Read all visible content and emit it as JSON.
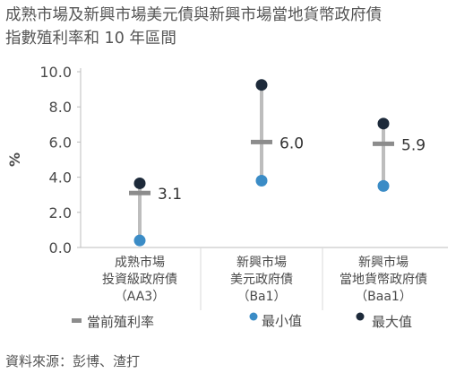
{
  "title": {
    "line1": "成熟市場及新興市場美元債與新興市場當地貨幣政府債",
    "line2": "指數殖利率和 10 年區間"
  },
  "source": "資料來源：彭博、渣打",
  "colors": {
    "range_line": "#bdbdbd",
    "current_marker": "#8c8c8c",
    "min_dot": "#3b8cc6",
    "max_dot": "#1d2a3a",
    "axis": "#bdbdbd",
    "text": "#4a4a4a"
  },
  "chart_data": {
    "type": "range_dot",
    "ylabel": "%",
    "ylim": [
      0,
      10
    ],
    "yticks": [
      "0.0",
      "2.0",
      "4.0",
      "6.0",
      "8.0",
      "10.0"
    ],
    "categories": [
      [
        "成熟市場",
        "投資級政府債",
        "（AA3）"
      ],
      [
        "新興市場",
        "美元政府債",
        "（Ba1）"
      ],
      [
        "新興市場",
        "當地貨幣政府債",
        "（Baa1）"
      ]
    ],
    "series": [
      {
        "name": "當前殖利率",
        "values": [
          3.1,
          6.0,
          5.9
        ],
        "labels": [
          "3.1",
          "6.0",
          "5.9"
        ]
      },
      {
        "name": "最小值",
        "values": [
          0.4,
          3.8,
          3.5
        ]
      },
      {
        "name": "最大值",
        "values": [
          3.65,
          9.25,
          7.05
        ]
      }
    ],
    "legend": [
      {
        "label": "當前殖利率",
        "marker": "dash"
      },
      {
        "label": "最小值",
        "marker": "min-dot"
      },
      {
        "label": "最大值",
        "marker": "max-dot"
      }
    ]
  }
}
